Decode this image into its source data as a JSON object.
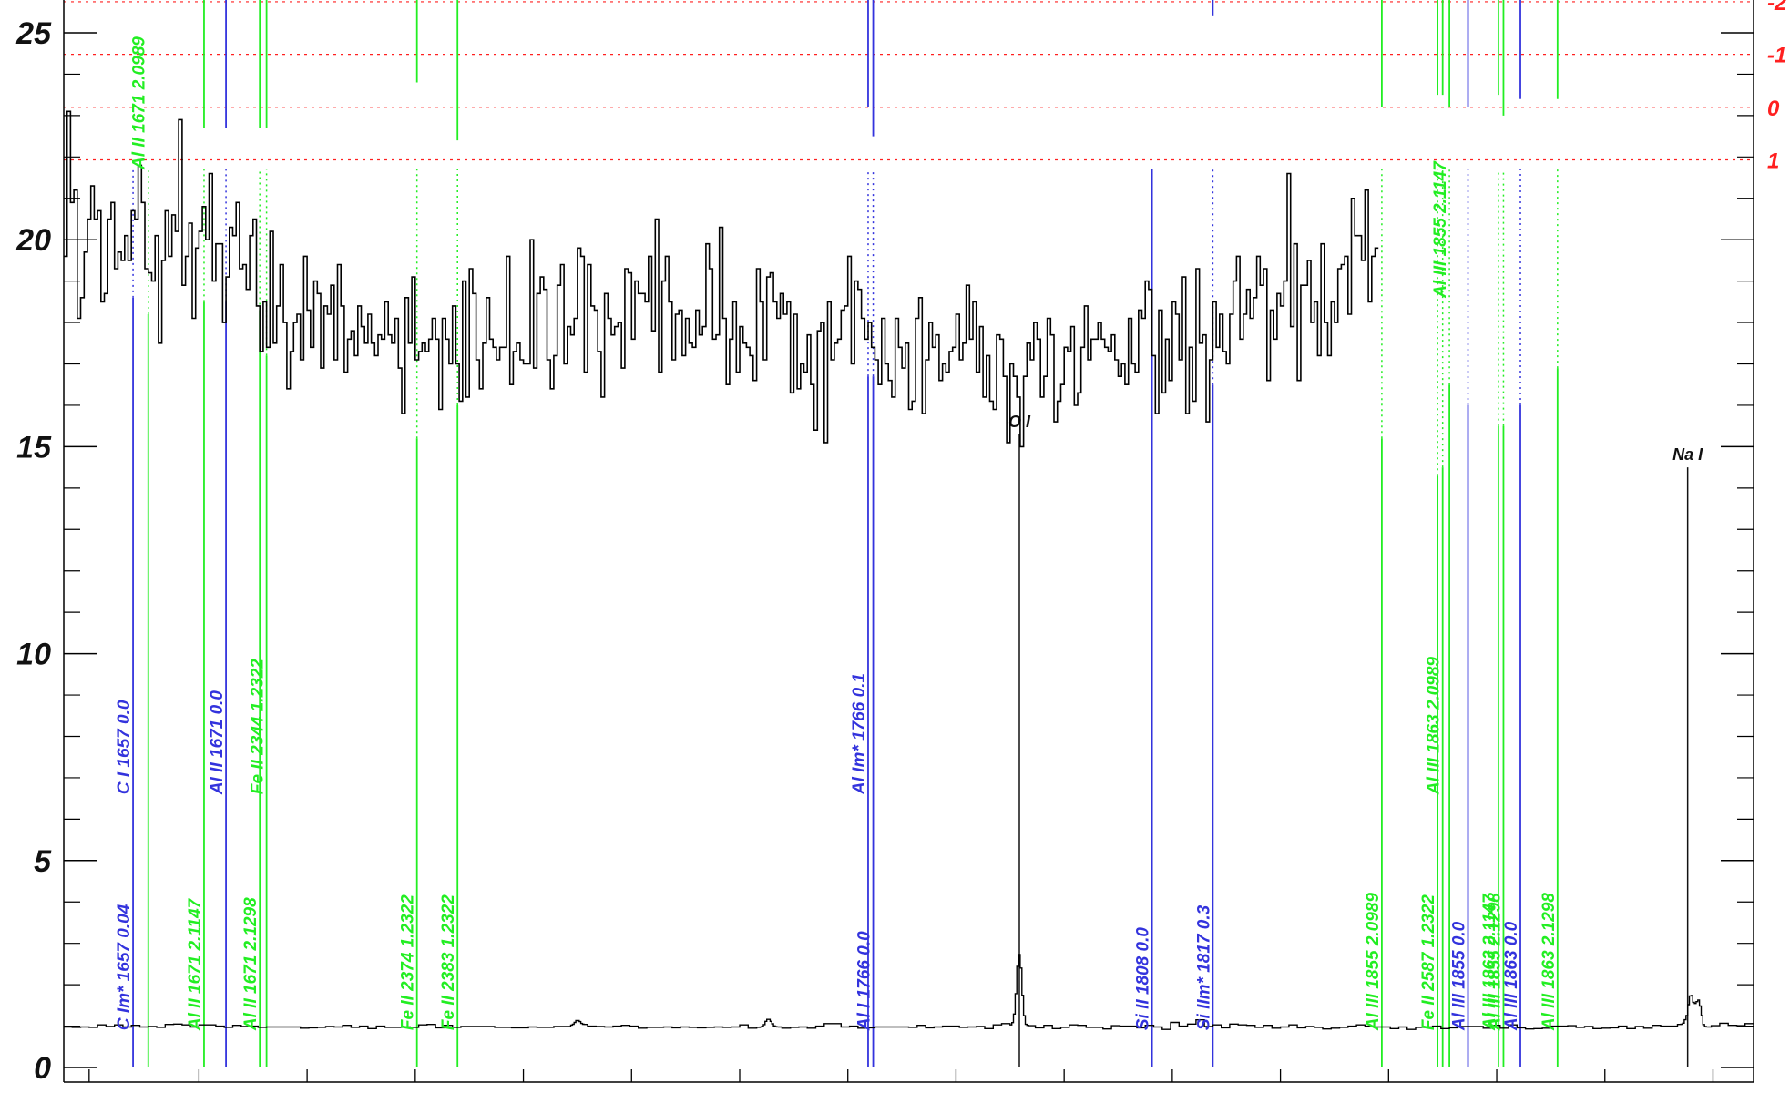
{
  "chart_data": {
    "type": "line",
    "title": "",
    "xlabel": "",
    "ylabel": "",
    "xlim": [
      0,
      100
    ],
    "ylim": [
      0,
      25.8
    ],
    "grid": false,
    "y_ticks": [
      {
        "value": 0,
        "label": "0"
      },
      {
        "value": 5,
        "label": "5"
      },
      {
        "value": 10,
        "label": "10"
      },
      {
        "value": 15,
        "label": "15"
      },
      {
        "value": 20,
        "label": "20"
      },
      {
        "value": 25,
        "label": "25"
      }
    ],
    "y_minor_step": 1,
    "x_ticks": [
      1.5,
      8,
      14.4,
      20.8,
      27.2,
      33.6,
      40,
      46.4,
      52.8,
      59.2,
      65.6,
      72,
      78.4,
      84.8,
      91.2,
      97.6
    ],
    "velocity_levels": [
      {
        "label": "-2",
        "y": 25.75
      },
      {
        "label": "-1",
        "y": 24.48
      },
      {
        "label": "0",
        "y": 23.2
      },
      {
        "label": "1",
        "y": 21.93
      }
    ],
    "level_color": "#ff2020",
    "colors": {
      "spectrum": "#000000",
      "blue": "#3333dd",
      "green": "#22ee22",
      "black": "#111111"
    },
    "spectrum_upper": {
      "start": 0,
      "step": 0.2,
      "values": [
        19.6,
        23.1,
        20.9,
        21.2,
        18.1,
        18.6,
        19.7,
        20.5,
        21.3,
        20.5,
        20.7,
        18.5,
        18.7,
        20.5,
        20.9,
        19.3,
        19.7,
        19.5,
        20.1,
        19.5,
        20.7,
        20.5,
        21.8,
        20.9,
        19.3,
        19.2,
        19.0,
        20.1,
        17.5,
        19.5,
        20.7,
        19.6,
        20.6,
        20.2,
        22.9,
        18.9,
        19.6,
        20.4,
        18.1,
        19.8,
        20.2,
        20.8,
        20.0,
        21.6,
        19.0,
        19.9,
        19.9,
        18.0,
        19.1,
        20.3,
        20.1,
        20.9,
        19.3,
        19.4,
        18.8,
        20.1,
        20.5,
        18.4,
        17.3,
        18.5,
        17.4,
        20.2,
        17.5,
        18.4,
        19.4,
        18.0,
        16.4,
        17.3,
        18.0,
        18.2,
        17.1,
        19.6,
        18.3,
        17.4,
        19.0,
        18.7,
        16.9,
        18.4,
        18.2,
        18.9,
        17.1,
        19.4,
        18.4,
        16.8,
        17.6,
        17.8,
        17.2,
        18.4,
        17.9,
        17.5,
        18.2,
        17.5,
        17.2,
        17.7,
        17.6,
        18.5,
        17.7,
        17.5,
        18.1,
        16.9,
        15.8,
        18.6,
        17.5,
        19.1,
        17.1,
        17.3,
        17.5,
        17.3,
        17.6,
        18.1,
        17.6,
        15.9,
        18.1,
        17.6,
        17.0,
        18.4,
        17.0,
        16.1,
        19.0,
        16.2,
        19.3,
        18.7,
        17.1,
        16.4,
        17.5,
        18.6,
        17.6,
        17.4,
        17.1,
        17.4,
        17.4,
        19.6,
        16.5,
        17.3,
        17.5,
        17.1,
        17.0,
        17.0,
        20.0,
        16.9,
        18.7,
        19.1,
        18.8,
        17.1,
        16.4,
        17.2,
        18.9,
        19.4,
        17.0,
        17.9,
        17.7,
        18.1,
        19.8,
        19.6,
        16.8,
        19.4,
        18.4,
        18.3,
        17.3,
        16.2,
        18.7,
        18.1,
        17.7,
        17.9,
        18.0,
        16.9,
        19.3,
        19.2,
        17.6,
        19.0,
        18.7,
        18.7,
        18.5,
        19.6,
        17.8,
        20.5,
        16.8,
        19.0,
        19.6,
        18.5,
        17.1,
        18.2,
        18.3,
        17.2,
        18.1,
        17.5,
        17.4,
        18.3,
        17.7,
        17.9,
        19.9,
        19.3,
        17.6,
        17.7,
        20.3,
        18.1,
        16.5,
        17.6,
        18.5,
        16.8,
        17.9,
        17.5,
        17.4,
        17.2,
        16.6,
        19.3,
        18.5,
        17.1,
        19.1,
        19.2,
        18.5,
        18.1,
        18.7,
        18.2,
        18.5,
        16.3,
        18.2,
        16.4,
        17.0,
        16.8,
        17.7,
        16.5,
        15.4,
        17.8,
        18.0,
        15.1,
        18.5,
        17.1,
        17.5,
        17.6,
        18.3,
        18.4,
        19.6,
        17.0,
        19.0,
        18.8,
        18.1,
        17.6,
        18.0,
        17.4,
        17.1,
        16.5,
        18.1,
        17.0,
        16.6,
        16.2,
        18.1,
        17.4,
        16.9,
        17.5,
        15.9,
        16.1,
        18.1,
        18.6,
        15.8,
        17.1,
        18.0,
        17.4,
        17.7,
        16.6,
        17.0,
        16.8,
        17.3,
        17.4,
        18.2,
        17.1,
        17.5,
        18.9,
        17.6,
        18.5,
        16.8,
        17.9,
        16.2,
        17.2,
        16.1,
        15.9,
        17.7,
        17.6,
        16.7,
        15.1,
        17.0,
        16.7,
        16.2,
        15.0,
        16.7,
        17.5,
        17.1,
        18.0,
        17.6,
        16.2,
        16.7,
        18.1,
        17.7,
        15.6,
        16.1,
        16.5,
        17.4,
        17.3,
        17.9,
        16.0,
        16.3,
        17.4,
        18.4,
        17.1,
        17.6,
        17.6,
        18.0,
        17.6,
        17.4,
        17.3,
        17.7,
        17.1,
        16.7,
        17.0,
        16.5,
        18.1,
        17.0,
        16.8,
        18.3,
        18.1,
        19.0,
        18.8,
        17.2,
        15.8,
        18.3,
        16.3,
        17.6,
        16.6,
        18.5,
        18.2,
        17.1,
        19.1,
        15.8,
        17.4,
        16.1,
        19.3,
        17.5,
        17.7,
        15.6,
        17.1,
        18.5,
        17.4,
        18.2,
        17.3,
        17.0,
        18.2,
        19.0,
        19.6,
        17.6,
        18.2,
        18.8,
        18.1,
        18.6,
        19.6,
        18.9,
        19.3,
        16.6,
        18.3,
        17.6,
        18.7,
        18.4,
        19.0,
        21.6,
        17.9,
        19.9,
        16.6,
        18.9,
        18.9,
        19.5,
        18.0,
        18.5,
        17.2,
        19.9,
        18.0,
        17.2,
        18.5,
        18.0,
        19.3,
        19.4,
        19.6,
        18.2,
        21.0,
        20.1,
        20.1,
        19.5,
        21.2,
        18.5,
        19.6,
        19.8
      ]
    },
    "spectrum_lower": {
      "start": 0,
      "step": 0.5,
      "values": [
        0.98,
        0.97,
        0.98,
        0.97,
        1.03,
        0.99,
        1.03,
        0.98,
        1.02,
        0.98,
        0.99,
        0.97,
        1.04,
        1.05,
        1.03,
        0.98,
        1.03,
        1.03,
        1.0,
        0.97,
        1.02,
        0.99,
        1.0,
        0.97,
        0.98,
        0.98,
        0.98,
        0.98,
        0.95,
        0.96,
        0.97,
        0.99,
        0.98,
        1.02,
        0.97,
        1.0,
        0.94,
        1.0,
        0.97,
        0.97,
        0.98,
        0.97,
        1.03,
        1.04,
        0.96,
        1.02,
        0.97,
        0.99,
        0.99,
        0.99,
        0.99,
        0.97,
        0.97,
        0.96,
        0.96,
        0.98,
        0.97,
        0.97,
        0.99,
        0.99,
        1.02,
        1.04,
        1.0,
        0.99,
        0.98,
        1.0,
        1.02,
        1.0,
        0.95,
        0.97,
        0.97,
        0.98,
        0.96,
        0.98,
        0.97,
        0.96,
        0.97,
        0.98,
        0.97,
        0.98,
        1.03,
        0.95,
        0.97,
        0.99,
        0.98,
        0.95,
        0.97,
        0.98,
        0.95,
        1.0,
        1.06,
        1.06,
        0.98,
        1.0,
        0.95,
        0.96,
        0.98,
        0.98,
        0.98,
        0.98,
        0.97,
        1.02,
        0.96,
        0.98,
        1.0,
        1.0,
        0.97,
        0.98,
        0.99,
        0.94,
        1.03,
        1.06,
        1.02,
        0.98,
        1.01,
        0.96,
        1.02,
        0.94,
        0.97,
        1.03,
        1.02,
        0.97,
        0.97,
        0.93,
        1.01,
        1.0,
        1.0,
        0.96,
        1.02,
        0.98,
        0.92,
        1.09,
        1.0,
        1.05,
        1.15,
        0.99,
        1.03,
        0.96,
        1.05,
        1.03,
        1.02,
        0.97,
        1.02,
        0.95,
        0.98,
        1.03,
        0.96,
        0.99,
        0.97,
        0.93,
        0.95,
        0.97,
        1.0,
        1.03,
        1.0,
        0.98,
        0.98,
        0.94,
        0.98,
        0.92,
        0.97,
        0.98,
        1.0,
        0.94,
        0.96,
        0.99,
        0.99,
        0.99,
        0.95,
        1.02,
        0.95,
        1.03,
        0.96,
        0.93,
        0.94,
        0.95,
        1.0,
        1.0,
        1.01,
        0.97,
        0.99,
        0.94,
        0.95,
        0.96,
        1.0,
        0.94,
        0.99,
        0.95,
        1.02,
        1.0,
        1.0,
        1.04,
        0.96,
        1.05,
        0.98,
        1.01,
        1.07,
        1.02,
        1.01,
        1.06,
        1.03,
        1.0,
        1.01,
        1.01,
        1.0,
        1.01,
        1.01,
        1.05,
        1.04,
        1.02,
        1.04,
        1.07,
        1.05,
        1.04,
        1.02,
        1.02,
        1.04,
        1.05,
        1.09,
        1.09,
        1.13,
        1.15,
        1.2,
        1.13,
        1.16,
        1.24,
        1.19,
        1.18,
        1.19,
        1.2,
        1.23,
        1.25,
        1.27,
        1.28,
        1.24,
        1.26,
        1.26,
        1.22,
        1.18,
        1.19,
        1.21,
        1.19,
        1.21,
        1.18,
        1.17,
        1.14,
        1.12,
        1.11,
        1.11,
        1.09,
        1.11,
        1.06,
        1.05,
        1.06,
        1.06,
        1.05,
        1.04,
        1.03,
        1.0,
        1.03,
        1.01,
        1.02,
        0.98,
        1.03,
        1.0,
        1.0,
        0.99,
        1.02,
        0.99,
        0.98,
        1.01,
        1.01,
        1.0,
        1.01,
        1.03,
        0.96,
        0.98,
        0.97,
        0.99,
        0.98,
        0.96,
        0.98,
        1.01,
        1.02,
        0.97,
        1.02,
        1.0,
        0.98,
        1.02,
        1.07,
        1.0,
        1.06,
        1.0,
        0.96,
        1.03,
        1.0,
        1.01,
        1.03
      ]
    },
    "emission_bumps": [
      {
        "x": 56.55,
        "height": 1.75,
        "width": 0.22
      },
      {
        "x": 96.3,
        "height": 0.8,
        "width": 0.25
      },
      {
        "x": 96.75,
        "height": 0.55,
        "width": 0.2
      },
      {
        "x": 30.4,
        "height": 0.12,
        "width": 0.2
      },
      {
        "x": 41.7,
        "height": 0.18,
        "width": 0.25
      }
    ],
    "line_markers": [
      {
        "x": 4.1,
        "color": "blue",
        "y_from": 0,
        "y_to": 18.6,
        "label": "C I 1657 0.0",
        "label_y": 6.6
      },
      {
        "x": 4.1,
        "color": "blue",
        "y_from": 18.6,
        "y_to": 21.7,
        "dotted": true
      },
      {
        "x": 4.1,
        "color": "blue",
        "y_from": 0,
        "y_to": 0,
        "label": "C Im* 1657 0.04",
        "label_y": 0.9
      },
      {
        "x": 5.0,
        "color": "green",
        "y_from": 0,
        "y_to": 18.2,
        "label": "Al II 1671 2.0989",
        "label_y": 21.7
      },
      {
        "x": 5.0,
        "color": "green",
        "y_from": 18.2,
        "y_to": 21.7,
        "dotted": true
      },
      {
        "x": 8.3,
        "color": "green",
        "y_from": 0,
        "y_to": 18.5,
        "label": "Al II 1671 2.1147",
        "label_y": 0.9
      },
      {
        "x": 8.3,
        "color": "green",
        "y_from": 18.5,
        "y_to": 21.7,
        "dotted": true
      },
      {
        "x": 8.3,
        "color": "green",
        "y_from": 22.7,
        "y_to": 25.8
      },
      {
        "x": 9.6,
        "color": "blue",
        "y_from": 0,
        "y_to": 18.5,
        "label": "Al II 1671 0.0",
        "label_y": 6.6
      },
      {
        "x": 9.6,
        "color": "blue",
        "y_from": 18.5,
        "y_to": 21.7,
        "dotted": true
      },
      {
        "x": 9.6,
        "color": "blue",
        "y_from": 22.7,
        "y_to": 25.8
      },
      {
        "x": 11.6,
        "color": "green",
        "y_from": 0,
        "y_to": 18.3,
        "label": "Al II 1671 2.1298",
        "label_y": 0.9
      },
      {
        "x": 11.6,
        "color": "green",
        "y_from": 18.3,
        "y_to": 21.7,
        "dotted": true
      },
      {
        "x": 11.6,
        "color": "green",
        "y_from": 22.7,
        "y_to": 25.8
      },
      {
        "x": 12.0,
        "color": "green",
        "y_from": 0,
        "y_to": 17.2,
        "label": "Fe II 2344 1.2322",
        "label_y": 6.6
      },
      {
        "x": 12.0,
        "color": "green",
        "y_from": 17.2,
        "y_to": 21.7,
        "dotted": true
      },
      {
        "x": 12.0,
        "color": "green",
        "y_from": 22.7,
        "y_to": 25.8
      },
      {
        "x": 20.9,
        "color": "green",
        "y_from": 0,
        "y_to": 15.2,
        "label": "Fe II 2374 1.2322",
        "label_y": 0.9
      },
      {
        "x": 20.9,
        "color": "green",
        "y_from": 15.2,
        "y_to": 21.7,
        "dotted": true
      },
      {
        "x": 20.9,
        "color": "green",
        "y_from": 23.8,
        "y_to": 25.8
      },
      {
        "x": 23.3,
        "color": "green",
        "y_from": 0,
        "y_to": 16.0,
        "label": "Fe II 2383 1.2322",
        "label_y": 0.9
      },
      {
        "x": 23.3,
        "color": "green",
        "y_from": 16.0,
        "y_to": 21.7,
        "dotted": true
      },
      {
        "x": 23.3,
        "color": "green",
        "y_from": 22.4,
        "y_to": 25.8
      },
      {
        "x": 47.6,
        "color": "blue",
        "y_from": 0,
        "y_to": 16.7,
        "label": "Al Im* 1766 0.1",
        "label_y": 6.6
      },
      {
        "x": 47.6,
        "color": "blue",
        "y_from": 16.7,
        "y_to": 21.7,
        "dotted": true
      },
      {
        "x": 47.6,
        "color": "blue",
        "y_from": 23.2,
        "y_to": 25.8
      },
      {
        "x": 47.9,
        "color": "blue",
        "y_from": 0,
        "y_to": 16.7,
        "label": "Al I 1766 0.0",
        "label_y": 0.9
      },
      {
        "x": 47.9,
        "color": "blue",
        "y_from": 16.7,
        "y_to": 21.7,
        "dotted": true
      },
      {
        "x": 47.9,
        "color": "blue",
        "y_from": 22.5,
        "y_to": 25.8
      },
      {
        "x": 64.4,
        "color": "blue",
        "y_from": 0,
        "y_to": 21.7,
        "label": "Si II 1808 0.0",
        "label_y": 0.9
      },
      {
        "x": 68.0,
        "color": "blue",
        "y_from": 0,
        "y_to": 16.5,
        "label": "Si IIm* 1817 0.3",
        "label_y": 0.9
      },
      {
        "x": 68.0,
        "color": "blue",
        "y_from": 16.5,
        "y_to": 21.7,
        "dotted": true
      },
      {
        "x": 68.0,
        "color": "blue",
        "y_from": 25.4,
        "y_to": 25.8
      },
      {
        "x": 78.0,
        "color": "green",
        "y_from": 0,
        "y_to": 15.2,
        "label": "Al III 1855 2.0989",
        "label_y": 0.9
      },
      {
        "x": 78.0,
        "color": "green",
        "y_from": 15.2,
        "y_to": 21.7,
        "dotted": true
      },
      {
        "x": 78.0,
        "color": "green",
        "y_from": 23.2,
        "y_to": 25.8
      },
      {
        "x": 81.3,
        "color": "green",
        "y_from": 0,
        "y_to": 14.3,
        "label": "Fe II 2587 1.2322",
        "label_y": 0.9
      },
      {
        "x": 81.3,
        "color": "green",
        "y_from": 14.3,
        "y_to": 21.7,
        "dotted": true
      },
      {
        "x": 81.3,
        "color": "green",
        "y_from": 23.5,
        "y_to": 25.8
      },
      {
        "x": 81.6,
        "color": "green",
        "y_from": 0,
        "y_to": 14.5,
        "label": "Al III 1863 2.0989",
        "label_y": 6.6
      },
      {
        "x": 81.6,
        "color": "green",
        "y_from": 14.5,
        "y_to": 21.7,
        "dotted": true
      },
      {
        "x": 81.6,
        "color": "green",
        "y_from": 23.5,
        "y_to": 25.8
      },
      {
        "x": 82.0,
        "color": "green",
        "y_from": 0,
        "y_to": 16.5,
        "label": "Al III 1855 2.1147",
        "label_y": 18.6
      },
      {
        "x": 82.0,
        "color": "green",
        "y_from": 16.5,
        "y_to": 21.7,
        "dotted": true
      },
      {
        "x": 82.0,
        "color": "green",
        "y_from": 23.2,
        "y_to": 25.8
      },
      {
        "x": 83.1,
        "color": "blue",
        "y_from": 0,
        "y_to": 16.0,
        "label": "Al III 1855 0.0",
        "label_y": 0.9
      },
      {
        "x": 83.1,
        "color": "blue",
        "y_from": 16.0,
        "y_to": 21.7,
        "dotted": true
      },
      {
        "x": 83.1,
        "color": "blue",
        "y_from": 23.2,
        "y_to": 25.8
      },
      {
        "x": 84.9,
        "color": "green",
        "y_from": 0,
        "y_to": 15.5,
        "label": "Al III 1863 2.1147",
        "label_y": 0.9
      },
      {
        "x": 84.9,
        "color": "green",
        "y_from": 15.5,
        "y_to": 21.7,
        "dotted": true
      },
      {
        "x": 84.9,
        "color": "green",
        "y_from": 23.5,
        "y_to": 25.8
      },
      {
        "x": 85.2,
        "color": "green",
        "y_from": 0,
        "y_to": 15.5,
        "label": "Al III 1855 2.1298",
        "label_y": 0.9
      },
      {
        "x": 85.2,
        "color": "green",
        "y_from": 15.5,
        "y_to": 21.7,
        "dotted": true
      },
      {
        "x": 85.2,
        "color": "green",
        "y_from": 23.0,
        "y_to": 25.8
      },
      {
        "x": 86.2,
        "color": "blue",
        "y_from": 0,
        "y_to": 16.0,
        "label": "Al III 1863 0.0",
        "label_y": 0.9
      },
      {
        "x": 86.2,
        "color": "blue",
        "y_from": 16.0,
        "y_to": 21.7,
        "dotted": true
      },
      {
        "x": 86.2,
        "color": "blue",
        "y_from": 23.4,
        "y_to": 25.8
      },
      {
        "x": 88.4,
        "color": "green",
        "y_from": 0,
        "y_to": 16.9,
        "label": "Al III 1863 2.1298",
        "label_y": 0.9
      },
      {
        "x": 88.4,
        "color": "green",
        "y_from": 16.9,
        "y_to": 21.7,
        "dotted": true
      },
      {
        "x": 88.4,
        "color": "green",
        "y_from": 23.4,
        "y_to": 25.8
      }
    ],
    "features": [
      {
        "x": 56.55,
        "label": "O I",
        "y_to": 15.3
      },
      {
        "x": 96.1,
        "label": "Na I",
        "y_to": 14.5
      }
    ]
  }
}
